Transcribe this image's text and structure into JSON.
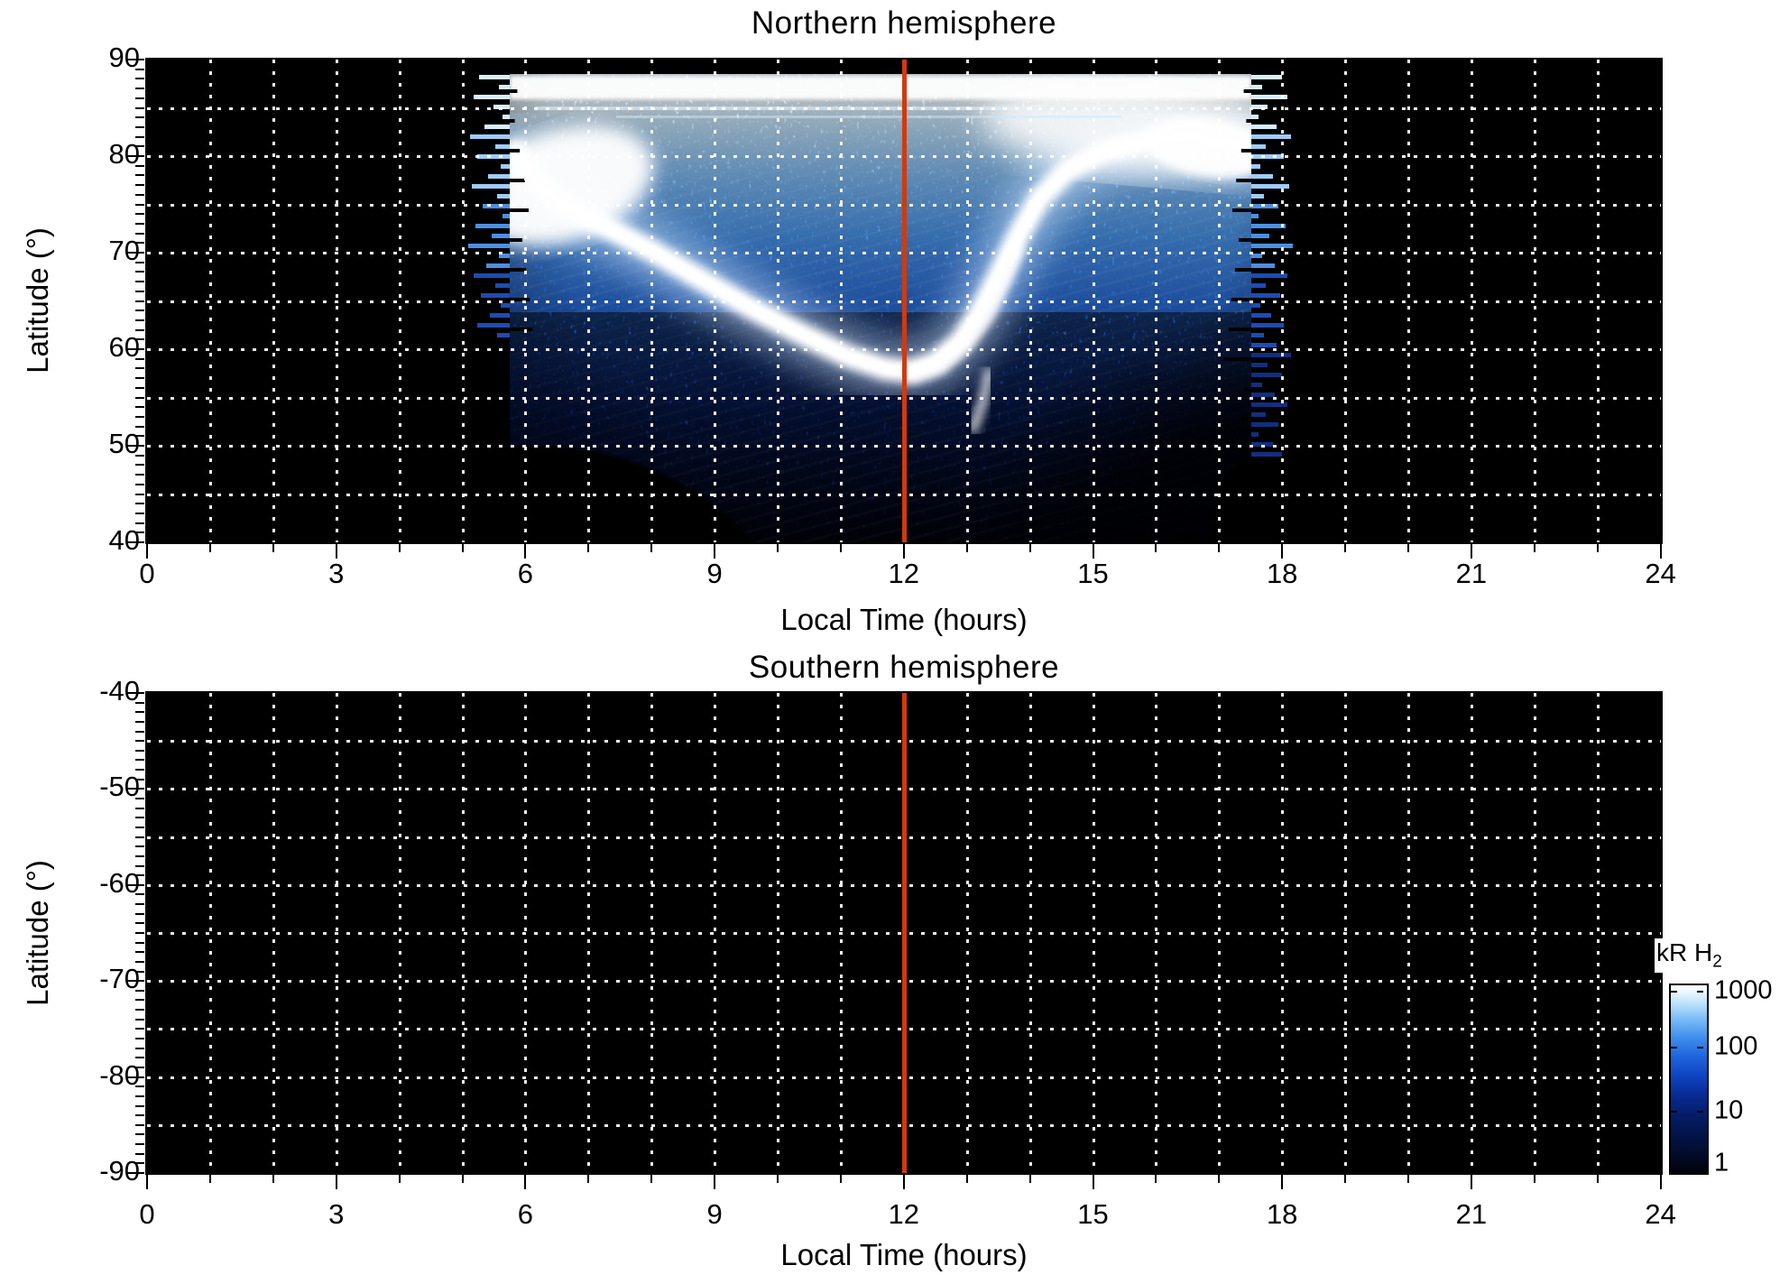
{
  "figure": {
    "north": {
      "title": "Northern hemisphere",
      "xlabel": "Local Time (hours)",
      "ylabel": "Latitude (°)",
      "x_tick_labels": [
        "0",
        "3",
        "6",
        "9",
        "12",
        "15",
        "18",
        "21",
        "24"
      ],
      "y_tick_labels": [
        "90",
        "80",
        "70",
        "60",
        "50",
        "40"
      ]
    },
    "south": {
      "title": "Southern hemisphere",
      "xlabel": "Local Time (hours)",
      "ylabel": "Latitude (°)",
      "x_tick_labels": [
        "0",
        "3",
        "6",
        "9",
        "12",
        "15",
        "18",
        "21",
        "24"
      ],
      "y_tick_labels": [
        "-40",
        "-50",
        "-60",
        "-70",
        "-80",
        "-90"
      ]
    },
    "colorbar": {
      "title": "kR H",
      "title_sub": "2",
      "tick_labels": [
        "1000",
        "100",
        "10",
        "1"
      ]
    },
    "colors": {
      "background": "#ffffff",
      "panel_background": "#000000",
      "grid": "#ffffff",
      "noon_marker_line": "#d13a0c"
    }
  },
  "chart_data": [
    {
      "type": "heatmap",
      "title": "Northern hemisphere",
      "xlabel": "Local Time (hours)",
      "ylabel": "Latitude (°)",
      "xlim": [
        0,
        24
      ],
      "ylim": [
        40,
        90
      ],
      "x_major_ticks": [
        0,
        3,
        6,
        9,
        12,
        15,
        18,
        21,
        24
      ],
      "x_minor_tick_step_hours": 1,
      "y_major_ticks": [
        40,
        50,
        60,
        70,
        80,
        90
      ],
      "y_minor_tick_step_deg": 1,
      "grid": "white dotted, spacing 1 hour x 5 degrees",
      "legend_position": "colorbar right of lower panel",
      "colorscale": {
        "label": "kR H2",
        "scale": "log",
        "min": 1,
        "max": 1000,
        "tick_values": [
          1,
          10,
          100,
          1000
        ],
        "colors_low_to_high": [
          "#010207",
          "#0a2f9a",
          "#3f8dec",
          "#ffffff"
        ]
      },
      "data_coverage_local_time_hours": [
        5.75,
        17.5
      ],
      "vertical_marker_line": {
        "x": 12,
        "color": "#d13a0c"
      },
      "features": [
        "bright white band along top edge near latitude 87-89 across the data swath",
        "thin dark-red artifact line near latitude 88.5 across the swath",
        "very bright auroral blob near 6-7 h local time at latitude 73-80",
        "main auroral arc descends from ~75 deg at 6.5 h to minimum ~57.5 deg near 11.5-12 h, then rises steeply to ~82 deg by 15-17 h",
        "second bright filament parallel to rising branch between 12 and 14 h",
        "broad bright region near 15-17.5 h at latitude 78-84 with ragged right edge",
        "speckled dark-blue noise below the arc down to ~40-45 deg",
        "black data void (planet limb) in lower-left of swath below ~50 deg between 6 and 9 h",
        "ragged horizontal scan-line edges on left (~5.75 h) and right (~17.5 h) borders of swath"
      ],
      "main_arc_points_hour_lat": [
        [
          5.85,
          80.5
        ],
        [
          6.2,
          77
        ],
        [
          6.7,
          74.6
        ],
        [
          7.3,
          72.6
        ],
        [
          8.0,
          70.2
        ],
        [
          8.8,
          67.2
        ],
        [
          9.6,
          64.2
        ],
        [
          10.4,
          61.5
        ],
        [
          11.1,
          59.3
        ],
        [
          11.7,
          58.0
        ],
        [
          12.1,
          57.7
        ],
        [
          12.5,
          58.6
        ],
        [
          12.9,
          60.8
        ],
        [
          13.2,
          63.8
        ],
        [
          13.5,
          67.6
        ],
        [
          13.8,
          71.6
        ],
        [
          14.15,
          75.6
        ],
        [
          14.6,
          78.6
        ],
        [
          15.2,
          80.6
        ],
        [
          15.9,
          81.7
        ],
        [
          16.6,
          82.0
        ],
        [
          17.2,
          81.3
        ],
        [
          17.45,
          80.6
        ]
      ],
      "secondary_filament_points_hour_lat": [
        [
          12.15,
          57.2
        ],
        [
          12.6,
          58.2
        ],
        [
          13.0,
          60.6
        ],
        [
          13.35,
          63.6
        ],
        [
          13.6,
          67.0
        ],
        [
          13.8,
          70.4
        ]
      ],
      "downward_filament_points_hour_lat": [
        [
          13.35,
          57.6
        ],
        [
          13.25,
          54.5
        ],
        [
          13.1,
          51.8
        ]
      ]
    },
    {
      "type": "heatmap",
      "title": "Southern hemisphere",
      "xlabel": "Local Time (hours)",
      "ylabel": "Latitude (°)",
      "xlim": [
        0,
        24
      ],
      "ylim": [
        -90,
        -40
      ],
      "x_major_ticks": [
        0,
        3,
        6,
        9,
        12,
        15,
        18,
        21,
        24
      ],
      "x_minor_tick_step_hours": 1,
      "y_major_ticks": [
        -40,
        -50,
        -60,
        -70,
        -80,
        -90
      ],
      "y_minor_tick_step_deg": 1,
      "grid": "white dotted, spacing 1 hour x 5 degrees",
      "data_coverage_local_time_hours": null,
      "note": "no emission data shown - panel entirely black",
      "vertical_marker_line": {
        "x": 12,
        "color": "#d13a0c"
      }
    }
  ]
}
